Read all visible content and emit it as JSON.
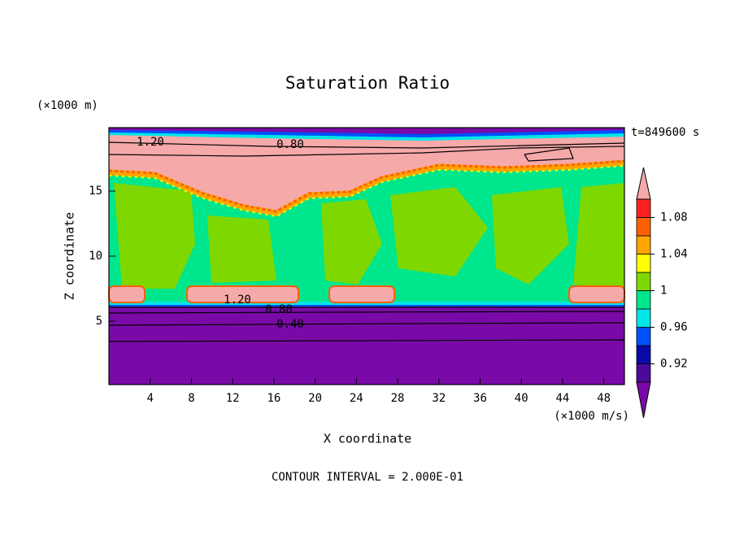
{
  "chart_data": {
    "type": "contour",
    "title": "Saturation Ratio",
    "xlabel": "X coordinate",
    "ylabel": "Z coordinate",
    "x_unit": "(×1000 m/s)",
    "y_unit": "(×1000 m)",
    "time_label": "t=849600 s",
    "footnote": "CONTOUR INTERVAL = 2.000E-01",
    "xlim": [
      0,
      50
    ],
    "xticks": [
      4,
      8,
      12,
      16,
      20,
      24,
      28,
      32,
      36,
      40,
      44,
      48
    ],
    "ylim": [
      0,
      20
    ],
    "yticks": [
      5,
      10,
      15
    ],
    "colorbar": {
      "levels": [
        0.9,
        0.92,
        0.94,
        0.96,
        0.98,
        1,
        1.02,
        1.04,
        1.06,
        1.08,
        1.1
      ],
      "ticks": [
        0.92,
        0.96,
        1,
        1.04,
        1.08
      ],
      "colors": [
        "#7a0aa8",
        "#4b0a9c",
        "#0a0aa8",
        "#0050ff",
        "#00e6e6",
        "#00e68c",
        "#7ed800",
        "#ffff00",
        "#ffa500",
        "#ff6000",
        "#ff2020",
        "#f5a9a9"
      ]
    },
    "contour_labels": [
      {
        "value": 1.2,
        "label": "1.20"
      },
      {
        "value": 0.8,
        "label": "0.80"
      },
      {
        "value": 1.2,
        "label": "1.20"
      },
      {
        "value": 0.8,
        "label": "0.80"
      },
      {
        "value": 0.4,
        "label": "0.40"
      }
    ]
  }
}
